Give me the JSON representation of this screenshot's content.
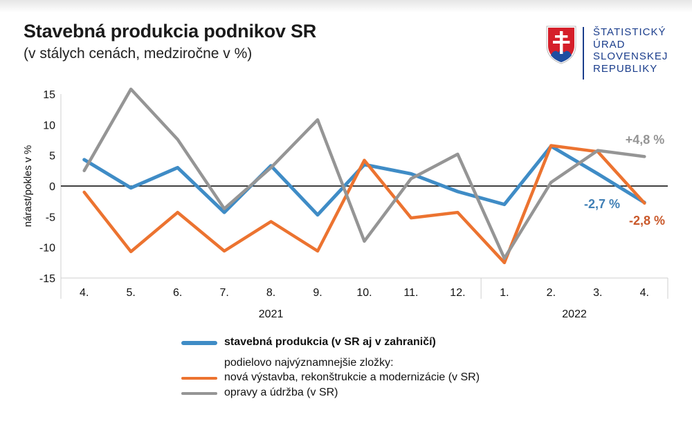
{
  "header": {
    "title": "Stavebná produkcia podnikov SR",
    "subtitle": "(v stálych cenách, medziročne v %)"
  },
  "logo": {
    "lines": [
      "ŠTATISTICKÝ",
      "ÚRAD",
      "SLOVENSKEJ",
      "REPUBLIKY"
    ],
    "color": "#1a3d8c"
  },
  "chart_data": {
    "type": "line",
    "title": "Stavebná produkcia podnikov SR",
    "subtitle": "(v stálych cenách, medziročne v %)",
    "ylabel": "nárast/pokles v %",
    "ylim": [
      -15,
      15
    ],
    "yticks": [
      15,
      10,
      5,
      0,
      -5,
      -10,
      -15
    ],
    "categories": [
      "4.",
      "5.",
      "6.",
      "7.",
      "8.",
      "9.",
      "10.",
      "11.",
      "12.",
      "1.",
      "2.",
      "3.",
      "4."
    ],
    "groups": [
      {
        "label": "2021",
        "start": 0,
        "end": 8
      },
      {
        "label": "2022",
        "start": 9,
        "end": 12
      }
    ],
    "grid": false,
    "series": [
      {
        "name": "stavebná produkcia (v SR aj v zahraničí)",
        "color": "#3f8cc6",
        "values": [
          4.3,
          -0.3,
          3.0,
          -4.3,
          3.3,
          -4.7,
          3.5,
          2.0,
          -0.9,
          -3.0,
          6.5,
          2.0,
          -2.7
        ]
      },
      {
        "name": "nová výstavba, rekonštrukcie a modernizácie (v SR)",
        "color": "#ec7330",
        "values": [
          -1.0,
          -10.7,
          -4.3,
          -10.6,
          -5.8,
          -10.6,
          4.2,
          -5.2,
          -4.3,
          -12.5,
          6.6,
          5.6,
          -2.8
        ]
      },
      {
        "name": "opravy a údržba (v SR)",
        "color": "#959595",
        "values": [
          2.5,
          15.8,
          7.6,
          -3.7,
          3.0,
          10.8,
          -9.0,
          1.2,
          5.2,
          -11.8,
          0.6,
          5.8,
          4.8
        ]
      }
    ],
    "annotations": [
      {
        "text": "+4,8 %",
        "series": 2,
        "color": "#959595"
      },
      {
        "text": "-2,7 %",
        "series": 0,
        "color": "#3f7fb5"
      },
      {
        "text": "-2,8 %",
        "series": 1,
        "color": "#c9582a"
      }
    ]
  },
  "legend": {
    "main_label": "stavebná produkcia (v SR aj v zahraničí)",
    "group_heading": "podielovo najvýznamnejšie zložky:",
    "item1_label": "nová výstavba, rekonštrukcie a modernizácie (v SR)",
    "item2_label": "opravy a údržba (v SR)"
  }
}
